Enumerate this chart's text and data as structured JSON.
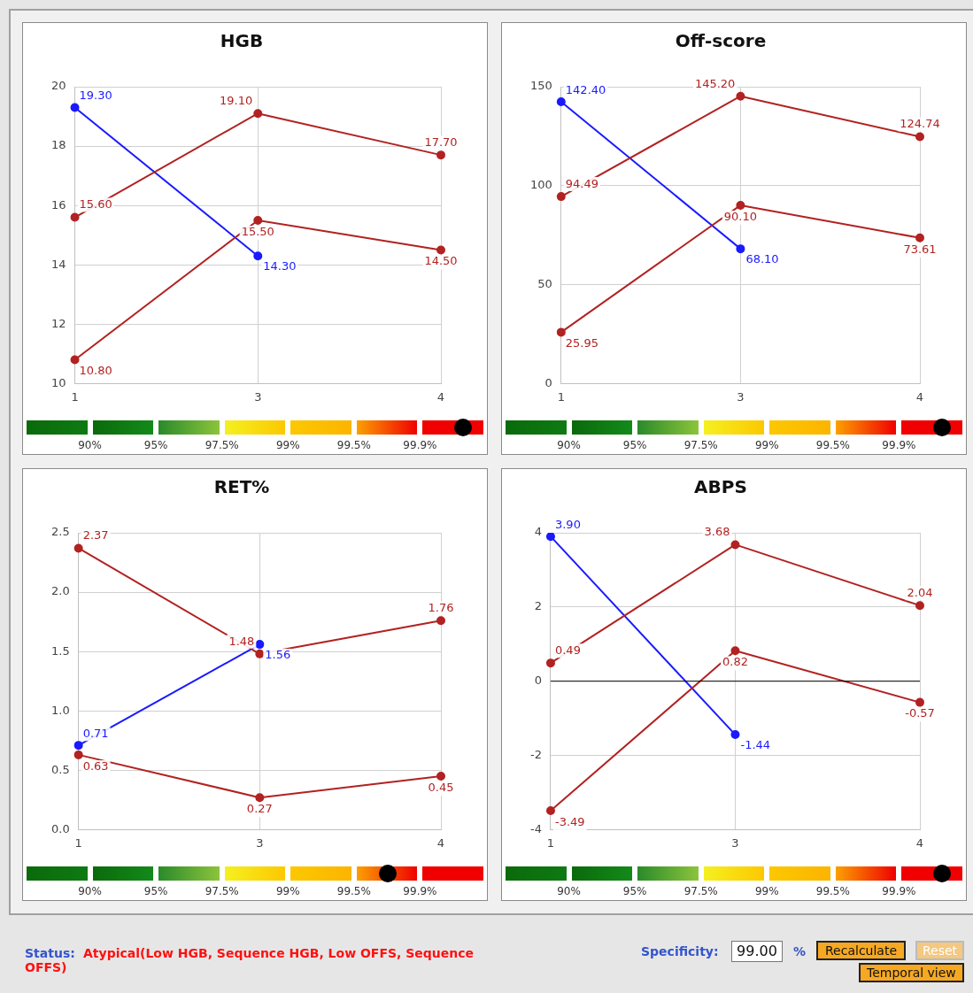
{
  "chart_data": [
    {
      "type": "line",
      "title": "HGB",
      "categories": [
        "1",
        "3",
        "4"
      ],
      "ylim": [
        10,
        20
      ],
      "yticks": [
        10,
        12,
        14,
        16,
        18,
        20
      ],
      "grid": true,
      "marker": "circle",
      "annotations": [
        "90%",
        "95%",
        "97.5%",
        "99%",
        "99.5%",
        "99.9%"
      ],
      "series": [
        {
          "color": "#b22222",
          "values": [
            15.6,
            19.1,
            17.7
          ],
          "value_labels": [
            "15.60",
            "19.10",
            "17.70"
          ]
        },
        {
          "color": "#b22222",
          "values": [
            10.8,
            15.5,
            14.5
          ],
          "value_labels": [
            "10.80",
            "15.50",
            "14.50"
          ]
        },
        {
          "color": "#1a1aff",
          "values": [
            19.3,
            14.3,
            null
          ],
          "value_labels": [
            "19.30",
            "14.30",
            null
          ]
        }
      ]
    },
    {
      "type": "line",
      "title": "Off-score",
      "categories": [
        "1",
        "3",
        "4"
      ],
      "ylim": [
        0,
        150
      ],
      "yticks": [
        0,
        50,
        100,
        150
      ],
      "grid": true,
      "marker": "circle",
      "annotations": [
        "90%",
        "95%",
        "97.5%",
        "99%",
        "99.5%",
        "99.9%"
      ],
      "series": [
        {
          "color": "#b22222",
          "values": [
            94.49,
            145.2,
            124.74
          ],
          "value_labels": [
            "94.49",
            "145.20",
            "124.74"
          ]
        },
        {
          "color": "#b22222",
          "values": [
            25.95,
            90.1,
            73.61
          ],
          "value_labels": [
            "25.95",
            "90.10",
            "73.61"
          ]
        },
        {
          "color": "#1a1aff",
          "values": [
            142.4,
            68.1,
            null
          ],
          "value_labels": [
            "142.40",
            "68.10",
            null
          ]
        }
      ]
    },
    {
      "type": "line",
      "title": "RET%",
      "categories": [
        "1",
        "3",
        "4"
      ],
      "ylim": [
        0,
        2.5
      ],
      "yticks": [
        {
          "value": 0,
          "label": "0.0"
        },
        {
          "value": 0.5,
          "label": "0.5"
        },
        {
          "value": 1,
          "label": "1.0"
        },
        {
          "value": 1.5,
          "label": "1.5"
        },
        {
          "value": 2,
          "label": "2.0"
        },
        {
          "value": 2.5,
          "label": "2.5"
        }
      ],
      "grid": true,
      "marker": "circle",
      "annotations": [
        "90%",
        "95%",
        "97.5%",
        "99%",
        "99.5%",
        "99.9%"
      ],
      "series": [
        {
          "color": "#b22222",
          "values": [
            2.37,
            1.48,
            1.76
          ],
          "value_labels": [
            "2.37",
            "1.48",
            "1.76"
          ]
        },
        {
          "color": "#b22222",
          "values": [
            0.63,
            0.27,
            0.45
          ],
          "value_labels": [
            "0.63",
            "0.27",
            "0.45"
          ]
        },
        {
          "color": "#1a1aff",
          "values": [
            0.71,
            1.56,
            null
          ],
          "value_labels": [
            "0.71",
            "1.56",
            null
          ]
        }
      ]
    },
    {
      "type": "line",
      "title": "ABPS",
      "categories": [
        "1",
        "3",
        "4"
      ],
      "ylim": [
        -4,
        4
      ],
      "yticks": [
        -4,
        -2,
        0,
        2,
        4
      ],
      "grid": true,
      "marker": "circle",
      "annotations": [
        "90%",
        "95%",
        "97.5%",
        "99%",
        "99.5%",
        "99.9%"
      ],
      "ref_lines": [
        {
          "axis": "y",
          "value": 0,
          "color": "#000000"
        }
      ],
      "series": [
        {
          "color": "#b22222",
          "values": [
            0.49,
            3.68,
            2.04
          ],
          "value_labels": [
            "0.49",
            "3.68",
            "2.04"
          ]
        },
        {
          "color": "#b22222",
          "values": [
            -3.49,
            0.82,
            -0.57
          ],
          "value_labels": [
            "-3.49",
            "0.82",
            "-0.57"
          ]
        },
        {
          "color": "#1a1aff",
          "values": [
            3.9,
            -1.44,
            null
          ],
          "value_labels": [
            "3.90",
            "-1.44",
            null
          ]
        }
      ]
    },
    {
      "type": "other",
      "annotations": [
        "Status:",
        "Atypical(Low HGB, Sequence HGB, Low OFFS, Sequence OFFS)",
        "Specificity:",
        "99.00",
        "%",
        "Recalculate",
        "Reset",
        "Temporal view"
      ]
    }
  ]
}
